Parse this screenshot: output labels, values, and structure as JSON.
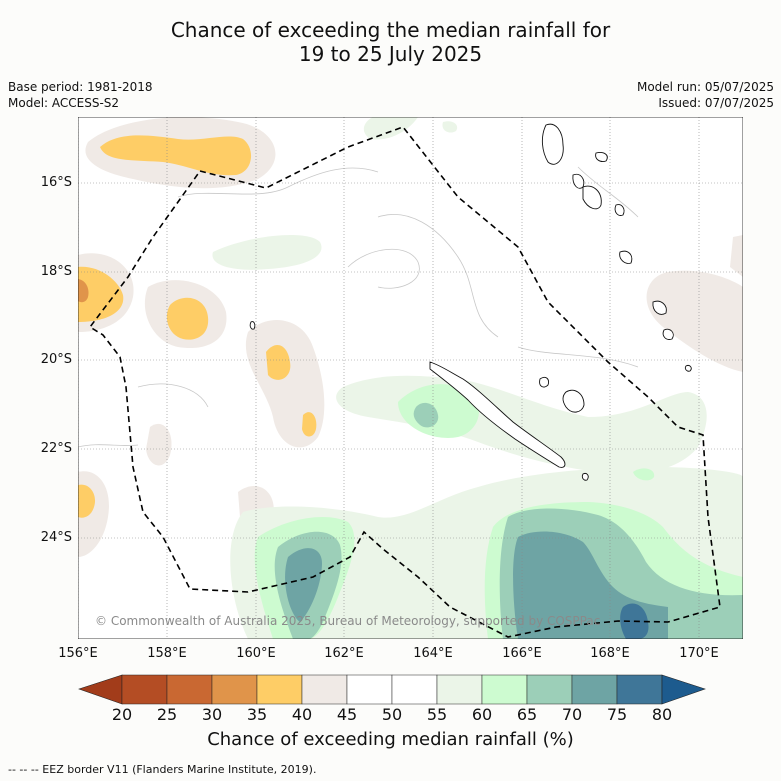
{
  "title_line1": "Chance of exceeding the median rainfall for",
  "title_line2": "19 to 25 July 2025",
  "base_period": "Base period: 1981-2018",
  "model": "Model: ACCESS-S2",
  "model_run": "Model run: 05/07/2025",
  "issued": "Issued: 07/07/2025",
  "lat_labels": [
    "16°S",
    "18°S",
    "20°S",
    "22°S",
    "24°S"
  ],
  "lon_labels": [
    "156°E",
    "158°E",
    "160°E",
    "162°E",
    "164°E",
    "166°E",
    "168°E",
    "170°E"
  ],
  "copyright": "© Commonwealth of Australia 2025, Bureau of Meteorology, supported by COSPPac",
  "colorbar": {
    "ticks": [
      "20",
      "25",
      "30",
      "35",
      "40",
      "45",
      "50",
      "55",
      "60",
      "65",
      "70",
      "75",
      "80"
    ],
    "colors": [
      "#a23c1a",
      "#b44d24",
      "#c96832",
      "#e0944a",
      "#fecd66",
      "#f0eae6",
      "#ffffff",
      "#ffffff",
      "#ebf5e8",
      "#cdfbd0",
      "#9ccfb8",
      "#6ea4a4",
      "#3f7698",
      "#1d5b8e"
    ],
    "label": "Chance of exceeding median rainfall (%)"
  },
  "footnote": "--  --  -- EEZ border V11 (Flanders Marine Institute, 2019).",
  "legend_colors": {
    "dry_light": "#f0eae6",
    "dry_35": "#fecd66",
    "dry_30": "#e0944a",
    "wet_60": "#ebf5e8",
    "wet_65": "#cdfbd0",
    "wet_70": "#9ccfb8",
    "wet_75": "#6ea4a4",
    "wet_80": "#3f7698"
  }
}
